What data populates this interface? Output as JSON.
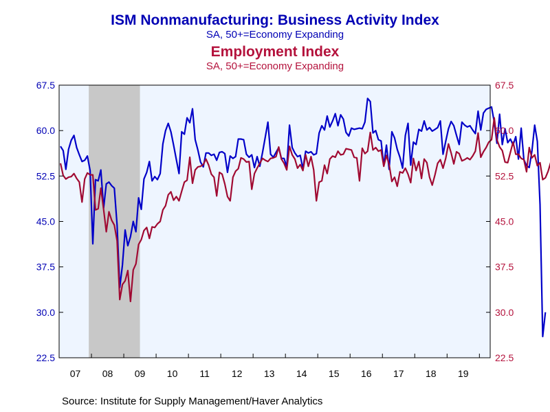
{
  "titles": {
    "title1": "ISM Nonmanufacturing: Business Activity Index",
    "subtitle1": "SA, 50+=Economy Expanding",
    "title2": "Employment Index",
    "subtitle2": "SA, 50+=Economy Expanding"
  },
  "source": "Source:  Institute for Supply Management/Haver Analytics",
  "colors": {
    "business_activity": "#0000c8",
    "employment": "#a00a32",
    "plot_background": "#eef5ff",
    "recession_shade": "#c8c8c8",
    "left_axis_text": "#0000b4",
    "right_axis_text": "#b4123c"
  },
  "chart_data": {
    "type": "line",
    "x_tick_labels": [
      "07",
      "08",
      "09",
      "10",
      "11",
      "12",
      "13",
      "14",
      "15",
      "16",
      "17",
      "18",
      "19"
    ],
    "xlim": [
      "2007-01",
      "2020-05"
    ],
    "y_left": {
      "ylim": [
        22.5,
        67.5
      ],
      "ticks": [
        "22.5",
        "30.0",
        "37.5",
        "45.0",
        "52.5",
        "60.0",
        "67.5"
      ]
    },
    "y_right": {
      "ylim": [
        22.5,
        67.5
      ],
      "ticks": [
        "22.5",
        "30.0",
        "37.5",
        "45.0",
        "52.5",
        "60.0",
        "67.5"
      ]
    },
    "grid": false,
    "recession": {
      "start": "2007-12",
      "end": "2009-06"
    },
    "series": [
      {
        "name": "ISM Nonmanufacturing: Business Activity Index",
        "axis": "left",
        "start": "2007-01",
        "values": [
          57.4,
          56.7,
          53.6,
          56.9,
          58.4,
          59.2,
          57.2,
          56.0,
          54.9,
          55.1,
          55.8,
          53.4,
          41.3,
          51.9,
          51.7,
          53.5,
          47.2,
          51.2,
          51.5,
          50.9,
          50.5,
          44.4,
          34.1,
          37.8,
          43.6,
          41.0,
          42.5,
          45.0,
          43.3,
          48.9,
          47.0,
          52.0,
          53.1,
          54.9,
          51.7,
          52.4,
          51.9,
          52.9,
          57.8,
          60.0,
          61.2,
          59.8,
          57.6,
          55.2,
          52.9,
          59.8,
          59.4,
          62.1,
          61.3,
          63.6,
          58.5,
          56.8,
          54.8,
          54.0,
          56.3,
          56.3,
          55.9,
          56.1,
          55.1,
          56.4,
          56.5,
          56.2,
          53.1,
          55.8,
          55.4,
          55.7,
          58.6,
          58.6,
          58.5,
          56.1,
          55.6,
          56.0,
          53.9,
          55.7,
          54.1,
          56.4,
          58.9,
          61.4,
          56.1,
          55.6,
          56.4,
          57.2,
          55.4,
          55.4,
          54.0,
          60.9,
          57.2,
          56.3,
          55.7,
          55.9,
          53.7,
          56.6,
          56.3,
          56.5,
          56.0,
          56.2,
          59.6,
          60.8,
          60.1,
          62.4,
          60.6,
          61.6,
          62.8,
          60.8,
          62.6,
          61.9,
          59.7,
          59.1,
          60.4,
          60.2,
          60.3,
          60.4,
          60.3,
          61.4,
          65.3,
          64.8,
          59.6,
          60.0,
          58.5,
          58.3,
          54.2,
          57.6,
          53.6,
          59.8,
          58.8,
          56.9,
          55.6,
          53.8,
          59.2,
          61.2,
          54.3,
          58.1,
          57.7,
          60.2,
          59.9,
          61.6,
          60.1,
          60.5,
          59.9,
          60.2,
          60.5,
          61.6,
          56.1,
          58.2,
          60.3,
          61.5,
          60.8,
          59.2,
          57.7,
          61.4,
          60.9,
          60.6,
          60.8,
          60.1,
          59.5,
          63.2,
          60.1,
          62.9,
          63.5,
          63.7,
          63.9,
          61.4,
          57.9,
          62.7,
          57.7,
          60.3,
          58.0,
          58.6,
          57.6,
          59.0,
          55.3,
          60.4,
          55.2,
          54.2,
          53.9,
          56.6,
          60.9,
          58.2,
          47.8,
          26.0,
          30.0
        ]
      },
      {
        "name": "Employment Index",
        "axis": "right",
        "start": "2007-01",
        "values": [
          54.6,
          52.6,
          52.0,
          52.3,
          52.4,
          52.9,
          52.1,
          51.5,
          48.2,
          52.0,
          53.0,
          52.7,
          52.7,
          46.9,
          47.1,
          50.5,
          47.0,
          43.3,
          46.6,
          45.2,
          44.4,
          41.8,
          32.1,
          34.6,
          35.2,
          36.9,
          31.8,
          37.0,
          38.0,
          41.2,
          42.0,
          43.5,
          44.0,
          42.2,
          44.1,
          44.0,
          44.6,
          45.0,
          46.9,
          47.6,
          49.4,
          49.9,
          48.5,
          49.1,
          48.4,
          50.0,
          51.5,
          51.8,
          55.6,
          51.3,
          53.5,
          54.0,
          54.1,
          54.4,
          55.3,
          54.3,
          52.8,
          52.3,
          49.2,
          53.1,
          52.8,
          51.2,
          49.1,
          48.4,
          52.3,
          53.3,
          53.7,
          55.5,
          55.3,
          54.8,
          54.9,
          50.3,
          52.9,
          53.8,
          54.6,
          55.4,
          55.1,
          54.9,
          55.4,
          55.5,
          55.7,
          57.3,
          55.3,
          54.6,
          53.5,
          57.4,
          56.0,
          55.3,
          53.8,
          54.4,
          53.4,
          56.0,
          54.1,
          55.7,
          53.5,
          48.4,
          51.5,
          51.7,
          54.3,
          52.9,
          55.3,
          55.8,
          55.6,
          56.6,
          56.0,
          56.1,
          57.0,
          56.9,
          56.8,
          55.6,
          55.5,
          51.7,
          57.1,
          56.2,
          56.6,
          59.7,
          56.8,
          57.2,
          56.6,
          56.8,
          54.1,
          55.9,
          54.4,
          51.6,
          52.3,
          50.8,
          53.2,
          53.0,
          53.8,
          52.8,
          51.4,
          55.4,
          53.4,
          54.9,
          52.1,
          55.3,
          54.7,
          52.3,
          51.0,
          52.7,
          54.6,
          55.2,
          53.8,
          55.4,
          57.8,
          56.3,
          54.5,
          56.5,
          56.2,
          55.0,
          55.2,
          55.5,
          55.2,
          55.8,
          56.6,
          59.6,
          55.6,
          56.5,
          57.2,
          58.1,
          58.5,
          62.1,
          58.5,
          57.3,
          56.7,
          54.8,
          54.7,
          56.4,
          58.1,
          56.1,
          56.1,
          55.4,
          55.2,
          53.2,
          57.2,
          55.5,
          56.0,
          54.2,
          54.7,
          51.9,
          52.2,
          53.3,
          54.8,
          54.8,
          53.1,
          51.4,
          55.8
        ]
      }
    ]
  }
}
